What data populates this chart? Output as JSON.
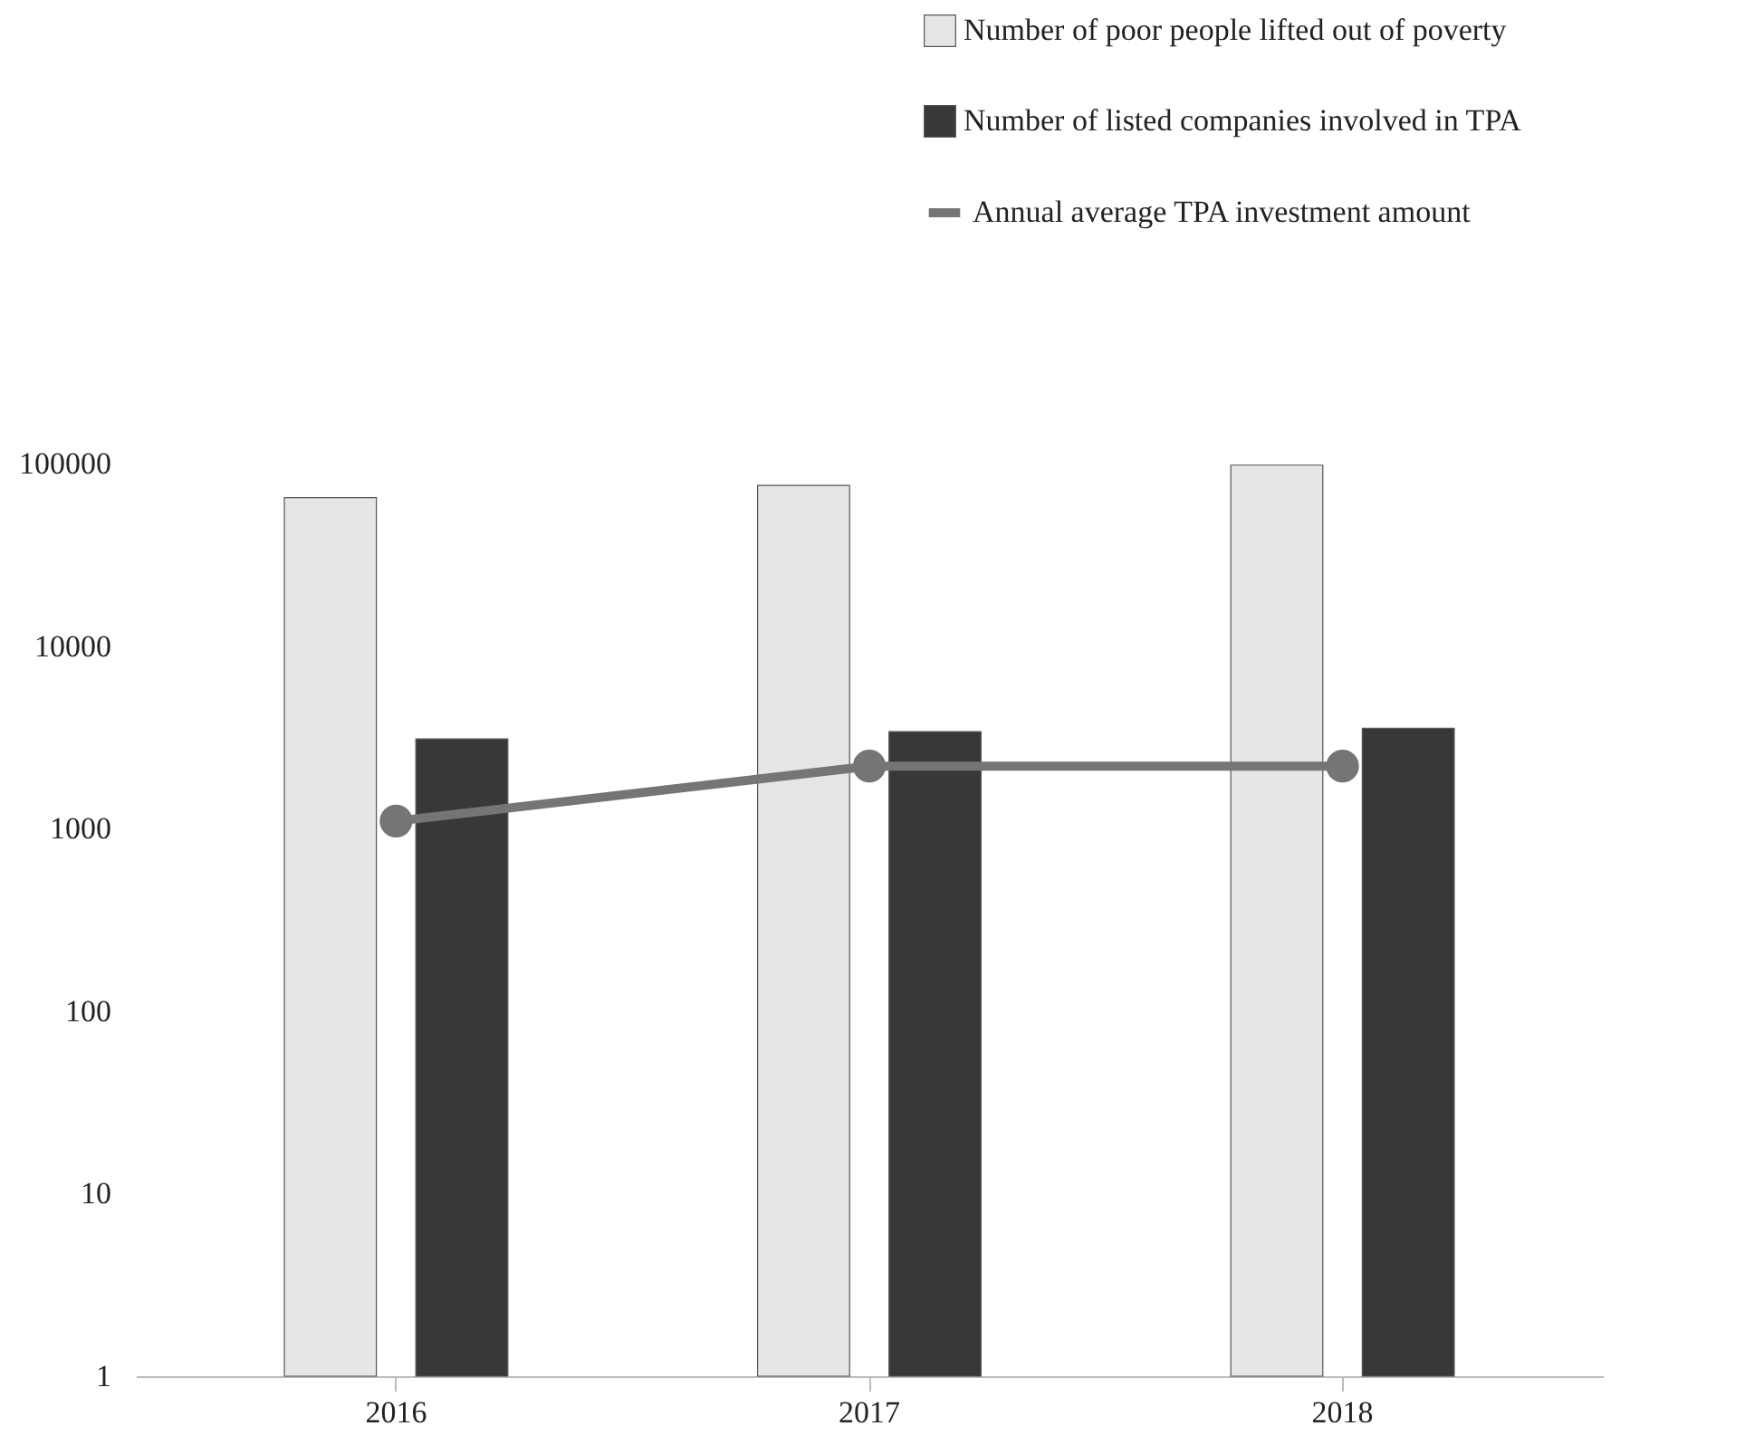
{
  "chart_data": {
    "type": "bar",
    "categories": [
      "2016",
      "2017",
      "2018"
    ],
    "log": "y",
    "ylim": [
      1,
      100000
    ],
    "yticks": [
      1,
      10,
      100,
      1000,
      10000,
      100000
    ],
    "legend": "top right",
    "marker": "circle",
    "series": [
      {
        "name": "Number of poor people lifted out of poverty",
        "color": "#e6e6e6",
        "values": [
          65000,
          76000,
          98000
        ]
      },
      {
        "name": "Number of listed companies involved in TPA",
        "color": "#383838",
        "values": [
          3100,
          3400,
          3550
        ]
      },
      {
        "name": "Annual average TPA investment amount",
        "type": "line",
        "color": "#757575",
        "values": [
          1100,
          2200,
          2200
        ]
      }
    ]
  }
}
